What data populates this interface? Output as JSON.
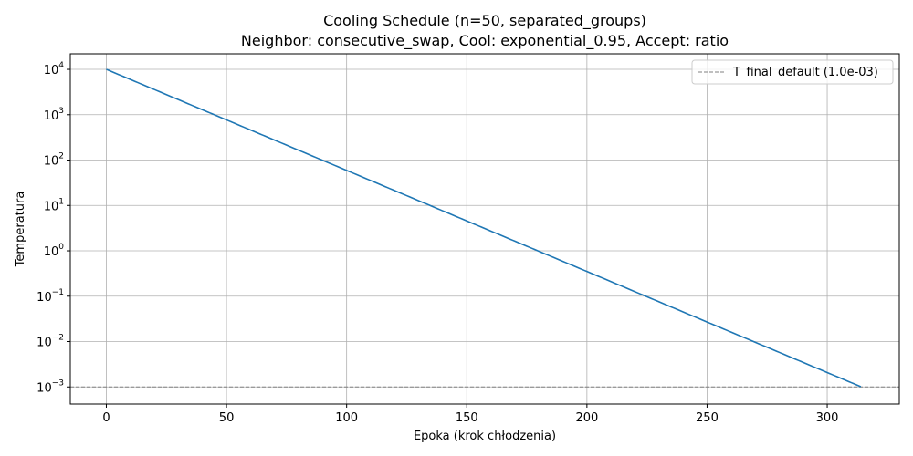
{
  "chart_data": {
    "type": "line",
    "title": "Cooling Schedule (n=50, separated_groups)",
    "subtitle": "Neighbor: consecutive_swap, Cool: exponential_0.95, Accept: ratio",
    "xlabel": "Epoka (krok chłodzenia)",
    "ylabel": "Temperatura",
    "xlim": [
      -15,
      330
    ],
    "ylim": [
      0.00042,
      22000
    ],
    "yscale": "log",
    "grid": true,
    "legend_position": "top-right",
    "x_ticks": [
      {
        "value": 0,
        "label": "0"
      },
      {
        "value": 50,
        "label": "50"
      },
      {
        "value": 100,
        "label": "100"
      },
      {
        "value": 150,
        "label": "150"
      },
      {
        "value": 200,
        "label": "200"
      },
      {
        "value": 250,
        "label": "250"
      },
      {
        "value": 300,
        "label": "300"
      }
    ],
    "y_ticks": [
      {
        "value": 10000,
        "base": "10",
        "exp": "4"
      },
      {
        "value": 1000,
        "base": "10",
        "exp": "3"
      },
      {
        "value": 100,
        "base": "10",
        "exp": "2"
      },
      {
        "value": 10,
        "base": "10",
        "exp": "1"
      },
      {
        "value": 1,
        "base": "10",
        "exp": "0"
      },
      {
        "value": 0.1,
        "base": "10",
        "exp": "−1"
      },
      {
        "value": 0.01,
        "base": "10",
        "exp": "−2"
      },
      {
        "value": 0.001,
        "base": "10",
        "exp": "−3"
      }
    ],
    "series": [
      {
        "color": "#1f77b4",
        "start": {
          "x": 0,
          "y": 10000
        },
        "decay_factor": 0.95,
        "end": {
          "x": 314,
          "y": 0.001
        }
      }
    ],
    "reference_lines": [
      {
        "name": "T_final_default (1.0e-03)",
        "y": 0.001,
        "color": "#808080",
        "style": "dashed"
      }
    ]
  }
}
